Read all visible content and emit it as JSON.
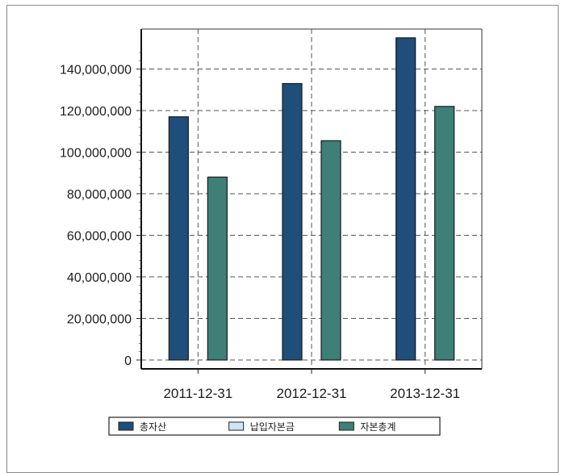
{
  "chart_data": {
    "type": "bar",
    "categories": [
      "2011-12-31",
      "2012-12-31",
      "2013-12-31"
    ],
    "series": [
      {
        "name": "총자산",
        "values": [
          117000000,
          133000000,
          155000000
        ],
        "color": "#1f4e7a"
      },
      {
        "name": "납입자본금",
        "values": [
          0,
          0,
          0
        ],
        "color": "#cfe6f5"
      },
      {
        "name": "자본총계",
        "values": [
          88000000,
          105500000,
          122000000
        ],
        "color": "#3e7f78"
      }
    ],
    "y_ticks": [
      0,
      20000000,
      40000000,
      60000000,
      80000000,
      100000000,
      120000000,
      140000000
    ],
    "y_tick_labels": [
      "0",
      "20,000,000",
      "40,000,000",
      "60,000,000",
      "80,000,000",
      "100,000,000",
      "120,000,000",
      "140,000,000"
    ],
    "ylim": [
      0,
      160000000
    ],
    "grid": true,
    "legend_position": "bottom",
    "title": "",
    "xlabel": "",
    "ylabel": ""
  }
}
